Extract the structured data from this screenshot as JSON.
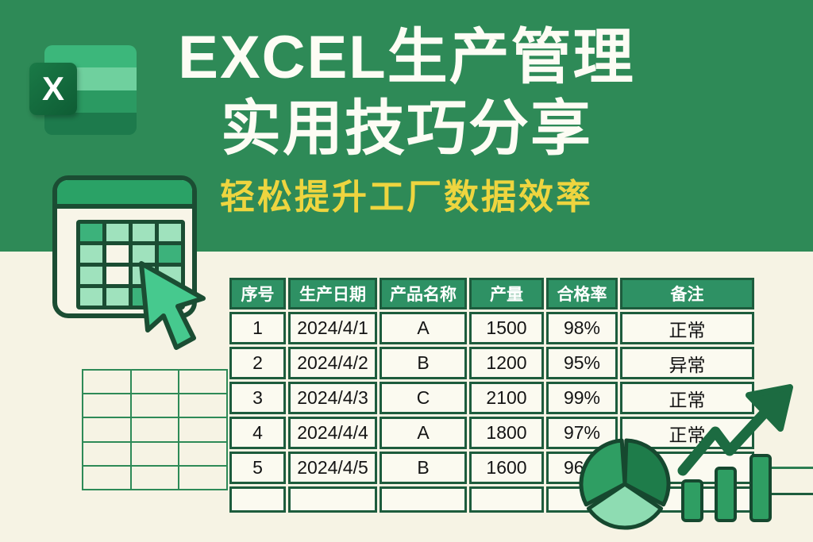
{
  "header": {
    "title_line1": "EXCEL生产管理",
    "title_line2": "实用技巧分享",
    "subtitle": "轻松提升工厂数据效率"
  },
  "excel_logo": {
    "letter": "X"
  },
  "production_table": {
    "headers": [
      "序号",
      "生产日期",
      "产品名称",
      "产量",
      "合格率",
      "备注"
    ],
    "rows": [
      [
        "1",
        "2024/4/1",
        "A",
        "1500",
        "98%",
        "正常"
      ],
      [
        "2",
        "2024/4/2",
        "B",
        "1200",
        "95%",
        "异常"
      ],
      [
        "3",
        "2024/4/3",
        "C",
        "2100",
        "99%",
        "正常"
      ],
      [
        "4",
        "2024/4/4",
        "A",
        "1800",
        "97%",
        "正常"
      ],
      [
        "5",
        "2024/4/5",
        "B",
        "1600",
        "96%",
        ""
      ],
      [
        "",
        "",
        "",
        "",
        "",
        ""
      ]
    ]
  },
  "icons": {
    "logo": "excel-x-logo",
    "calendar": "calendar-grid-icon",
    "cursor": "cursor-arrow-icon",
    "pie": "pie-chart-icon",
    "growth_arrow": "growth-arrow-icon",
    "bar_chart": "bar-chart-icon"
  },
  "colors": {
    "banner_green": "#2e8a57",
    "background_cream": "#f6f3e4",
    "title_white": "#fdfcf4",
    "subtitle_yellow": "#eed53f",
    "table_header_green": "#2e9164",
    "table_border_green": "#1d5c3d",
    "dark_outline_green": "#16482f",
    "pie_dark": "#1e7c4a",
    "pie_mid": "#2f9e63",
    "pie_light": "#8edcb2"
  }
}
